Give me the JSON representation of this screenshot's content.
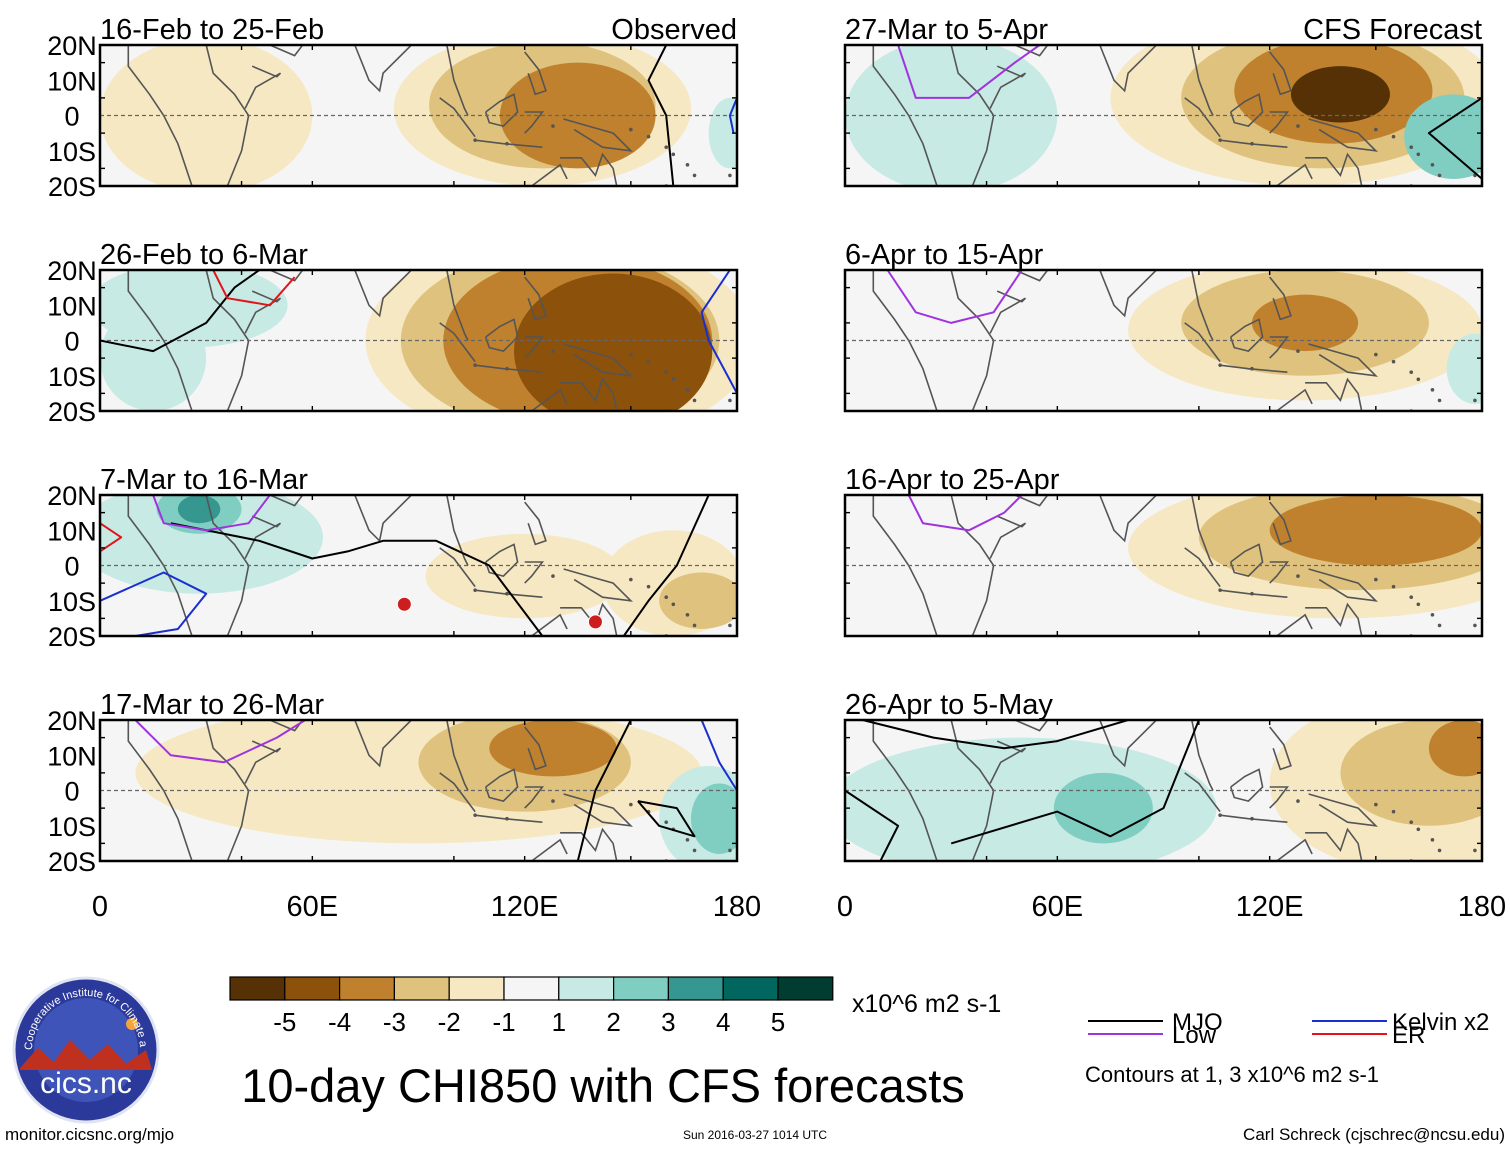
{
  "title": "10-day CHI850 with CFS forecasts",
  "footer": {
    "url": "monitor.cicsnc.org/mjo",
    "timestamp": "Sun 2016-03-27 1014 UTC",
    "author": "Carl Schreck (cjschrec@ncsu.edu)"
  },
  "logo": {
    "ring_text": "Cooperative Institute for Climate and Satellites",
    "label": "cics.nc"
  },
  "colors": {
    "neg5": "#553105",
    "neg4": "#8c510a",
    "neg3": "#bf812d",
    "neg2": "#dfc27d",
    "neg1": "#f6e8c3",
    "neutral": "#f5f5f5",
    "pos1": "#c7eae5",
    "pos2": "#80cdc1",
    "pos3": "#35978f",
    "pos4": "#01665e",
    "pos5": "#003c30",
    "mjo": "#000000",
    "low": "#a033e0",
    "kelvin": "#1a2fd0",
    "er": "#e0141a",
    "land": "#555555",
    "equator": "#666666"
  },
  "colorbar": {
    "units": "x10^6 m2 s-1",
    "labels": [
      "-5",
      "-4",
      "-3",
      "-2",
      "-1",
      "1",
      "2",
      "3",
      "4",
      "5"
    ],
    "bins": [
      "neg5",
      "neg4",
      "neg3",
      "neg2",
      "neg1",
      "neutral",
      "pos1",
      "pos2",
      "pos3",
      "pos4",
      "pos5"
    ]
  },
  "legend": {
    "items": [
      {
        "label": "MJO",
        "color_key": "mjo"
      },
      {
        "label": "Kelvin x2",
        "color_key": "kelvin"
      },
      {
        "label": "Low",
        "color_key": "low"
      },
      {
        "label": "ER",
        "color_key": "er"
      }
    ],
    "note": "Contours at 1, 3 x10^6 m2 s-1"
  },
  "chart_data": {
    "type": "heatmap",
    "variable": "CHI850 (850-hPa velocity potential) anomaly",
    "units": "x10^6 m2 s-1",
    "lon_range": [
      0,
      180
    ],
    "lat_range": [
      -20,
      20
    ],
    "x_ticks": [
      "0",
      "60E",
      "120E",
      "180"
    ],
    "y_ticks": [
      "20N",
      "10N",
      "0",
      "10S",
      "20S"
    ],
    "columns": [
      {
        "header": "Observed"
      },
      {
        "header": "CFS Forecast"
      }
    ],
    "panels": [
      {
        "id": "obs-1",
        "column": 0,
        "row": 0,
        "period": "16-Feb to 25-Feb",
        "blobs": [
          {
            "lon": 30,
            "lat": 0,
            "rl": 30,
            "rt": 22,
            "level": "neg1"
          },
          {
            "lon": 125,
            "lat": 2,
            "rl": 42,
            "rt": 22,
            "level": "neg1"
          },
          {
            "lon": 125,
            "lat": 3,
            "rl": 32,
            "rt": 18,
            "level": "neg2"
          },
          {
            "lon": 135,
            "lat": 0,
            "rl": 22,
            "rt": 15,
            "level": "neg3"
          },
          {
            "lon": 178,
            "lat": -5,
            "rl": 6,
            "rt": 10,
            "level": "pos1"
          }
        ],
        "contours": [
          {
            "type": "mjo",
            "points": [
              [
                160,
                20
              ],
              [
                155,
                10
              ],
              [
                160,
                0
              ],
              [
                162,
                -20
              ]
            ]
          },
          {
            "type": "kelvin",
            "points": [
              [
                180,
                5
              ],
              [
                178,
                0
              ],
              [
                179,
                -5
              ]
            ]
          }
        ],
        "markers": []
      },
      {
        "id": "obs-2",
        "column": 0,
        "row": 1,
        "period": "26-Feb to 6-Mar",
        "blobs": [
          {
            "lon": 25,
            "lat": 10,
            "rl": 28,
            "rt": 12,
            "level": "pos1"
          },
          {
            "lon": 15,
            "lat": -5,
            "rl": 15,
            "rt": 15,
            "level": "pos1"
          },
          {
            "lon": 130,
            "lat": 0,
            "rl": 55,
            "rt": 30,
            "level": "neg1"
          },
          {
            "lon": 130,
            "lat": 0,
            "rl": 45,
            "rt": 26,
            "level": "neg2"
          },
          {
            "lon": 135,
            "lat": 0,
            "rl": 38,
            "rt": 24,
            "level": "neg3"
          },
          {
            "lon": 145,
            "lat": -3,
            "rl": 28,
            "rt": 22,
            "level": "neg4"
          }
        ],
        "contours": [
          {
            "type": "mjo",
            "points": [
              [
                0,
                0
              ],
              [
                15,
                -3
              ],
              [
                30,
                5
              ],
              [
                38,
                15
              ],
              [
                45,
                20
              ]
            ]
          },
          {
            "type": "er",
            "points": [
              [
                32,
                20
              ],
              [
                36,
                12
              ],
              [
                48,
                10
              ],
              [
                55,
                18
              ]
            ]
          },
          {
            "type": "kelvin",
            "points": [
              [
                178,
                20
              ],
              [
                170,
                8
              ],
              [
                172,
                0
              ],
              [
                180,
                -15
              ]
            ]
          }
        ],
        "markers": []
      },
      {
        "id": "obs-3",
        "column": 0,
        "row": 2,
        "period": "7-Mar to 16-Mar",
        "blobs": [
          {
            "lon": 28,
            "lat": 8,
            "rl": 35,
            "rt": 16,
            "level": "pos1"
          },
          {
            "lon": 28,
            "lat": 16,
            "rl": 12,
            "rt": 7,
            "level": "pos2"
          },
          {
            "lon": 28,
            "lat": 16,
            "rl": 6,
            "rt": 4,
            "level": "pos3"
          },
          {
            "lon": 120,
            "lat": -3,
            "rl": 28,
            "rt": 12,
            "level": "neg1"
          },
          {
            "lon": 162,
            "lat": -5,
            "rl": 20,
            "rt": 15,
            "level": "neg1"
          },
          {
            "lon": 170,
            "lat": -10,
            "rl": 12,
            "rt": 8,
            "level": "neg2"
          }
        ],
        "contours": [
          {
            "type": "mjo",
            "points": [
              [
                20,
                12
              ],
              [
                45,
                7
              ],
              [
                60,
                2
              ],
              [
                70,
                4
              ],
              [
                80,
                7
              ],
              [
                95,
                7
              ],
              [
                110,
                0
              ],
              [
                125,
                -20
              ]
            ]
          },
          {
            "type": "mjo",
            "points": [
              [
                148,
                -20
              ],
              [
                155,
                -10
              ],
              [
                163,
                0
              ],
              [
                172,
                20
              ]
            ]
          },
          {
            "type": "low",
            "points": [
              [
                15,
                20
              ],
              [
                18,
                12
              ],
              [
                30,
                10
              ],
              [
                42,
                12
              ],
              [
                48,
                20
              ]
            ]
          },
          {
            "type": "kelvin",
            "points": [
              [
                0,
                -10
              ],
              [
                18,
                -2
              ],
              [
                30,
                -8
              ],
              [
                22,
                -18
              ],
              [
                10,
                -20
              ]
            ]
          },
          {
            "type": "er",
            "points": [
              [
                0,
                12
              ],
              [
                6,
                8
              ],
              [
                0,
                4
              ]
            ]
          }
        ],
        "markers": [
          {
            "lon": 86,
            "lat": -11
          },
          {
            "lon": 140,
            "lat": -16
          }
        ]
      },
      {
        "id": "obs-4",
        "column": 0,
        "row": 3,
        "period": "17-Mar to 26-Mar",
        "blobs": [
          {
            "lon": 90,
            "lat": 5,
            "rl": 80,
            "rt": 20,
            "level": "neg1"
          },
          {
            "lon": 120,
            "lat": 8,
            "rl": 30,
            "rt": 14,
            "level": "neg2"
          },
          {
            "lon": 128,
            "lat": 12,
            "rl": 18,
            "rt": 8,
            "level": "neg3"
          },
          {
            "lon": 172,
            "lat": -8,
            "rl": 14,
            "rt": 15,
            "level": "pos1"
          },
          {
            "lon": 175,
            "lat": -8,
            "rl": 8,
            "rt": 10,
            "level": "pos2"
          }
        ],
        "contours": [
          {
            "type": "mjo",
            "points": [
              [
                150,
                20
              ],
              [
                140,
                0
              ],
              [
                135,
                -20
              ]
            ]
          },
          {
            "type": "mjo",
            "points": [
              [
                152,
                -3
              ],
              [
                163,
                -5
              ],
              [
                168,
                -13
              ],
              [
                158,
                -10
              ],
              [
                152,
                -3
              ]
            ]
          },
          {
            "type": "low",
            "points": [
              [
                10,
                20
              ],
              [
                20,
                10
              ],
              [
                35,
                8
              ],
              [
                50,
                15
              ],
              [
                58,
                20
              ]
            ]
          },
          {
            "type": "kelvin",
            "points": [
              [
                170,
                20
              ],
              [
                175,
                8
              ],
              [
                180,
                0
              ]
            ]
          }
        ],
        "markers": []
      },
      {
        "id": "cfs-1",
        "column": 1,
        "row": 0,
        "period": "27-Mar to 5-Apr",
        "blobs": [
          {
            "lon": 30,
            "lat": 0,
            "rl": 30,
            "rt": 22,
            "level": "pos1"
          },
          {
            "lon": 130,
            "lat": 5,
            "rl": 55,
            "rt": 25,
            "level": "neg1"
          },
          {
            "lon": 135,
            "lat": 5,
            "rl": 40,
            "rt": 20,
            "level": "neg2"
          },
          {
            "lon": 138,
            "lat": 7,
            "rl": 28,
            "rt": 15,
            "level": "neg3"
          },
          {
            "lon": 140,
            "lat": 6,
            "rl": 14,
            "rt": 8,
            "level": "neg5"
          },
          {
            "lon": 172,
            "lat": -6,
            "rl": 14,
            "rt": 12,
            "level": "pos2"
          }
        ],
        "contours": [
          {
            "type": "low",
            "points": [
              [
                15,
                20
              ],
              [
                20,
                5
              ],
              [
                35,
                5
              ],
              [
                48,
                15
              ],
              [
                55,
                20
              ]
            ]
          },
          {
            "type": "mjo",
            "points": [
              [
                180,
                5
              ],
              [
                165,
                -5
              ],
              [
                180,
                -18
              ]
            ]
          }
        ],
        "markers": []
      },
      {
        "id": "cfs-2",
        "column": 1,
        "row": 1,
        "period": "6-Apr to 15-Apr",
        "blobs": [
          {
            "lon": 130,
            "lat": 3,
            "rl": 50,
            "rt": 20,
            "level": "neg1"
          },
          {
            "lon": 130,
            "lat": 5,
            "rl": 35,
            "rt": 15,
            "level": "neg2"
          },
          {
            "lon": 130,
            "lat": 5,
            "rl": 15,
            "rt": 8,
            "level": "neg3"
          },
          {
            "lon": 178,
            "lat": -8,
            "rl": 8,
            "rt": 10,
            "level": "pos1"
          }
        ],
        "contours": [
          {
            "type": "low",
            "points": [
              [
                12,
                20
              ],
              [
                20,
                8
              ],
              [
                30,
                5
              ],
              [
                42,
                8
              ],
              [
                50,
                20
              ]
            ]
          }
        ],
        "markers": []
      },
      {
        "id": "cfs-3",
        "column": 1,
        "row": 2,
        "period": "16-Apr to 25-Apr",
        "blobs": [
          {
            "lon": 140,
            "lat": 5,
            "rl": 60,
            "rt": 20,
            "level": "neg1"
          },
          {
            "lon": 145,
            "lat": 8,
            "rl": 45,
            "rt": 15,
            "level": "neg2"
          },
          {
            "lon": 150,
            "lat": 10,
            "rl": 30,
            "rt": 10,
            "level": "neg3"
          }
        ],
        "contours": [
          {
            "type": "low",
            "points": [
              [
                18,
                20
              ],
              [
                22,
                12
              ],
              [
                35,
                10
              ],
              [
                45,
                15
              ],
              [
                50,
                20
              ]
            ]
          }
        ],
        "markers": []
      },
      {
        "id": "cfs-4",
        "column": 1,
        "row": 3,
        "period": "26-Apr to 5-May",
        "blobs": [
          {
            "lon": 50,
            "lat": -5,
            "rl": 55,
            "rt": 20,
            "level": "pos1"
          },
          {
            "lon": 73,
            "lat": -5,
            "rl": 14,
            "rt": 10,
            "level": "pos2"
          },
          {
            "lon": 160,
            "lat": 2,
            "rl": 40,
            "rt": 25,
            "level": "neg1"
          },
          {
            "lon": 165,
            "lat": 5,
            "rl": 25,
            "rt": 15,
            "level": "neg2"
          },
          {
            "lon": 175,
            "lat": 12,
            "rl": 10,
            "rt": 8,
            "level": "neg3"
          }
        ],
        "contours": [
          {
            "type": "mjo",
            "points": [
              [
                5,
                20
              ],
              [
                25,
                15
              ],
              [
                45,
                12
              ],
              [
                60,
                14
              ],
              [
                80,
                20
              ]
            ]
          },
          {
            "type": "mjo",
            "points": [
              [
                0,
                0
              ],
              [
                15,
                -10
              ],
              [
                10,
                -20
              ]
            ]
          },
          {
            "type": "mjo",
            "points": [
              [
                30,
                -15
              ],
              [
                60,
                -6
              ],
              [
                75,
                -13
              ],
              [
                90,
                -5
              ],
              [
                100,
                20
              ]
            ]
          }
        ],
        "markers": []
      }
    ]
  }
}
